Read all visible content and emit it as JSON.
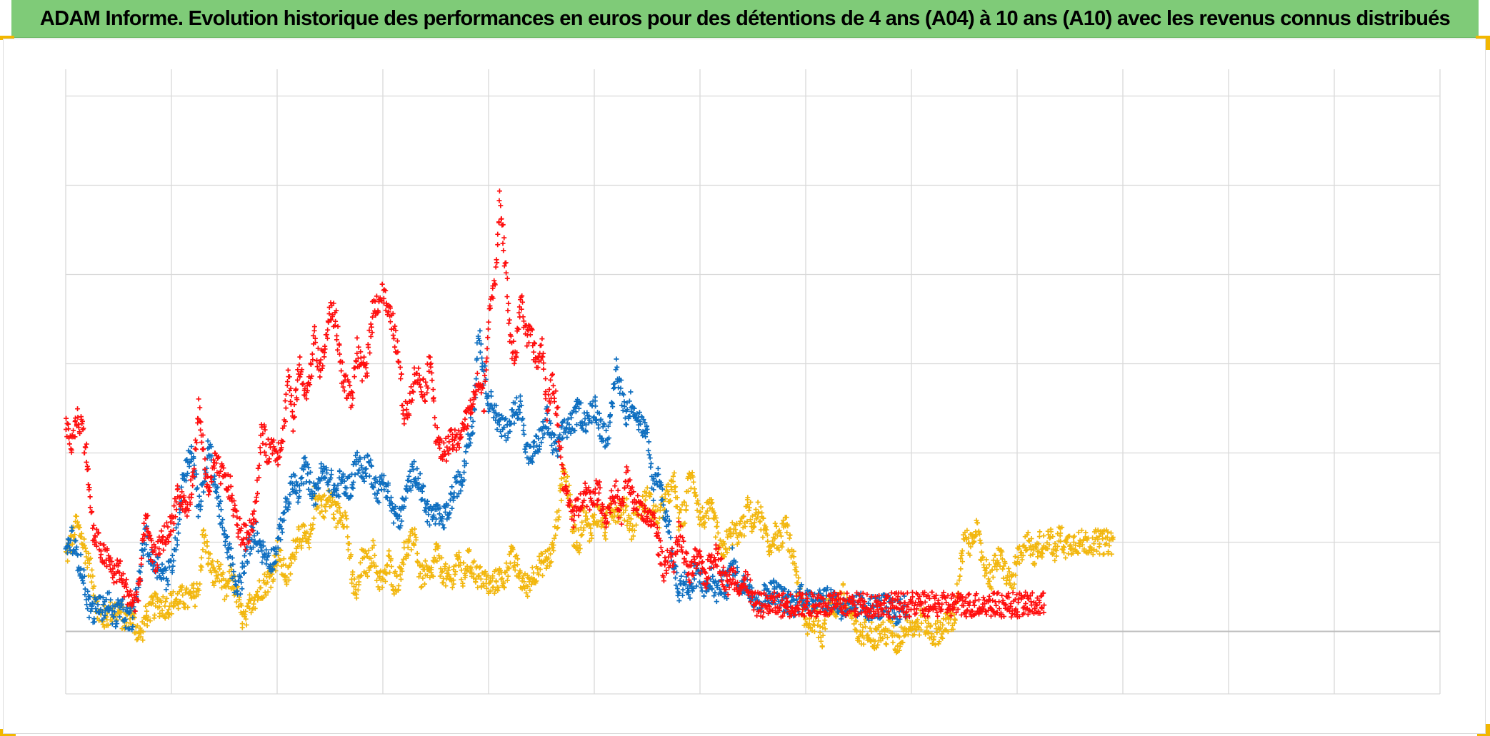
{
  "header": {
    "title": "ADAM Informe. Evolution historique des performances en euros pour des détentions de 4 ans (A04) à 10 ans (A10) avec les revenus connus distribués"
  },
  "colors": {
    "title_bg": "#7fcb78",
    "corner_accent": "#f2b700",
    "grid": "#d9d9d9",
    "axis": "#bfbfbf"
  },
  "chart_data": {
    "type": "scatter",
    "marker": "plus",
    "grid": true,
    "legend": "none",
    "xlim": [
      0,
      1300
    ],
    "ylim": [
      -70,
      630
    ],
    "x_gridlines": [
      0,
      100,
      200,
      300,
      400,
      500,
      600,
      700,
      800,
      900,
      1000,
      1100,
      1200,
      1300
    ],
    "y_gridlines": [
      -70,
      0,
      100,
      200,
      300,
      400,
      500,
      600
    ],
    "series": [
      {
        "color": "#f2b70f",
        "x_start": 0,
        "x_step": 5,
        "values": [
          85,
          100,
          120,
          105,
          80,
          60,
          20,
          15,
          18,
          25,
          22,
          12,
          20,
          8,
          -5,
          15,
          25,
          30,
          30,
          28,
          32,
          35,
          38,
          35,
          40,
          45,
          110,
          80,
          60,
          70,
          40,
          60,
          50,
          20,
          10,
          35,
          40,
          50,
          55,
          65,
          90,
          70,
          60,
          90,
          110,
          105,
          95,
          150,
          145,
          140,
          150,
          130,
          135,
          125,
          60,
          40,
          80,
          75,
          90,
          60,
          55,
          80,
          55,
          60,
          90,
          95,
          110,
          60,
          65,
          60,
          90,
          70,
          60,
          55,
          85,
          60,
          80,
          70,
          60,
          60,
          50,
          55,
          60,
          60,
          85,
          75,
          60,
          50,
          60,
          70,
          75,
          80,
          90,
          130,
          180,
          160,
          110,
          100,
          130,
          110,
          130,
          130,
          115,
          140,
          135,
          140,
          135,
          115,
          135,
          140,
          150,
          135,
          125,
          140,
          155,
          165,
          120,
          135,
          175,
          160,
          125,
          130,
          135,
          115,
          85,
          100,
          110,
          110,
          115,
          140,
          120,
          135,
          115,
          90,
          110,
          100,
          120,
          95,
          70,
          30,
          5,
          15,
          12,
          -5,
          30,
          25,
          30,
          40,
          25,
          10,
          -5,
          0,
          5,
          -10,
          0,
          -5,
          5,
          -15,
          -5,
          10,
          5,
          5,
          15,
          5,
          -5,
          0,
          5,
          10,
          15,
          60,
          105,
          95,
          120,
          90,
          70,
          60,
          80,
          80,
          60,
          55,
          80,
          85,
          110,
          80,
          100,
          95,
          110,
          85,
          110,
          95,
          100,
          100,
          100,
          100,
          100,
          100,
          100,
          100,
          100
        ]
      },
      {
        "color": "#0f6fc0",
        "x_start": 0,
        "x_step": 5,
        "values": [
          90,
          105,
          85,
          70,
          35,
          20,
          30,
          25,
          35,
          15,
          25,
          20,
          10,
          25,
          70,
          110,
          80,
          75,
          70,
          60,
          75,
          110,
          170,
          190,
          200,
          140,
          160,
          210,
          170,
          140,
          100,
          90,
          45,
          55,
          80,
          105,
          110,
          90,
          85,
          80,
          95,
          130,
          145,
          170,
          150,
          185,
          170,
          150,
          175,
          175,
          170,
          155,
          170,
          160,
          165,
          195,
          175,
          190,
          175,
          155,
          170,
          155,
          130,
          125,
          145,
          170,
          180,
          165,
          140,
          130,
          130,
          125,
          130,
          150,
          165,
          170,
          220,
          230,
          340,
          290,
          260,
          250,
          230,
          225,
          235,
          250,
          255,
          200,
          195,
          210,
          220,
          240,
          210,
          205,
          225,
          230,
          235,
          250,
          235,
          240,
          255,
          230,
          220,
          230,
          295,
          270,
          240,
          260,
          240,
          230,
          215,
          160,
          180,
          140,
          120,
          70,
          45,
          60,
          40,
          65,
          60,
          45,
          60,
          45,
          55,
          50,
          80,
          60,
          50,
          55,
          40,
          30,
          40,
          45,
          45,
          40,
          35,
          30,
          30,
          45,
          35,
          30,
          40,
          40,
          35,
          40,
          30,
          25,
          25,
          25,
          30,
          30,
          25,
          30,
          25,
          30,
          25,
          20,
          25,
          30
        ]
      },
      {
        "color": "#ff0f0f",
        "x_start": 0,
        "x_step": 5,
        "values": [
          225,
          210,
          240,
          230,
          190,
          110,
          100,
          85,
          80,
          65,
          70,
          50,
          40,
          30,
          60,
          135,
          90,
          80,
          100,
          110,
          120,
          155,
          145,
          135,
          170,
          250,
          200,
          150,
          190,
          180,
          170,
          160,
          130,
          110,
          105,
          120,
          140,
          230,
          200,
          210,
          200,
          220,
          290,
          230,
          300,
          270,
          280,
          330,
          290,
          320,
          360,
          350,
          295,
          275,
          260,
          315,
          290,
          300,
          360,
          370,
          380,
          355,
          340,
          300,
          240,
          260,
          290,
          280,
          270,
          310,
          220,
          200,
          205,
          215,
          210,
          230,
          240,
          260,
          280,
          260,
          360,
          380,
          490,
          420,
          330,
          300,
          380,
          330,
          330,
          300,
          320,
          250,
          280,
          240,
          170,
          145,
          130,
          140,
          160,
          150,
          155,
          155,
          125,
          145,
          155,
          130,
          175,
          150,
          140,
          140,
          120,
          130,
          100,
          70,
          85,
          80,
          110,
          85,
          60,
          80,
          75,
          60,
          80,
          90,
          70,
          50,
          65,
          55,
          50,
          55,
          30,
          30,
          30,
          30,
          30,
          30,
          30,
          30,
          30,
          30,
          30,
          30,
          30,
          30,
          30,
          30,
          30,
          30,
          30,
          30,
          30,
          30,
          30,
          30,
          30,
          30,
          30,
          30,
          30,
          30,
          30,
          30,
          30,
          30,
          30,
          30,
          30,
          30,
          30,
          30,
          30,
          30,
          30,
          30,
          30,
          30,
          30,
          30,
          30,
          30,
          30,
          30,
          30,
          30,
          30,
          30
        ]
      }
    ]
  }
}
